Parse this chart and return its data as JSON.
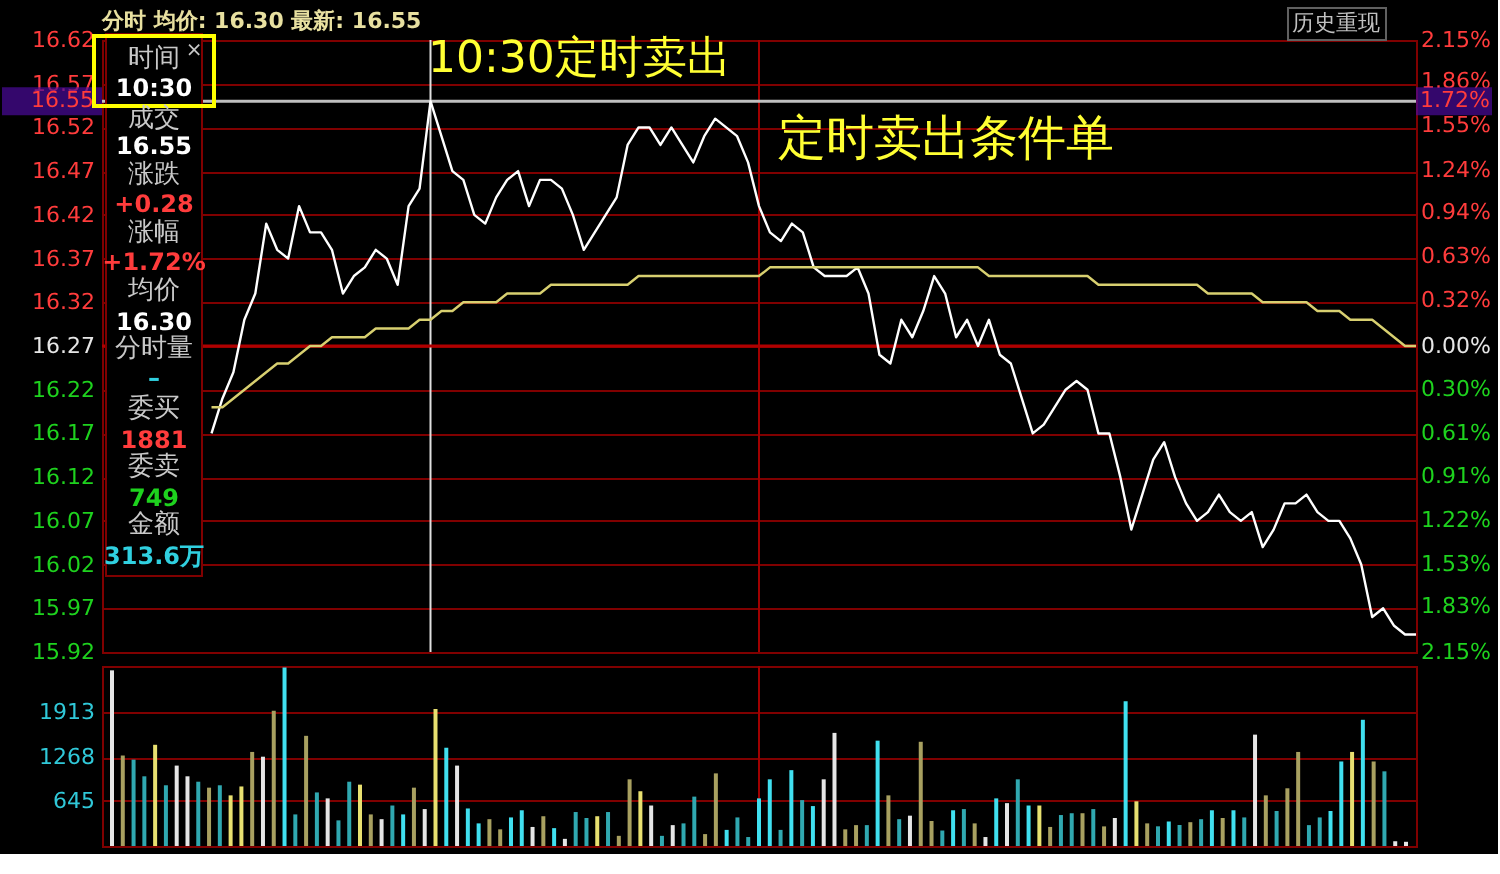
{
  "chart_data": [
    {
      "type": "line",
      "categories": [
        null,
        null,
        null,
        null,
        null,
        null,
        null,
        null,
        null,
        null,
        null,
        null,
        null,
        null,
        null,
        null,
        null,
        null,
        null,
        null,
        null,
        null,
        null,
        null,
        null,
        null,
        null,
        null,
        null,
        null,
        null,
        null,
        null,
        null,
        null,
        null,
        null,
        null,
        null,
        null,
        null,
        null,
        null,
        null,
        null,
        null,
        null,
        null,
        null,
        null,
        null,
        null,
        null,
        null,
        null,
        null,
        null,
        null,
        null,
        null,
        null,
        null,
        null,
        null,
        null,
        null,
        null,
        null,
        null,
        null,
        null,
        null,
        null,
        null,
        null,
        null,
        null,
        null,
        null,
        null,
        null,
        null,
        null,
        null,
        null,
        null,
        null,
        null,
        null,
        null,
        null,
        null,
        null,
        null,
        null,
        null,
        null,
        null,
        null,
        null,
        null,
        null,
        null,
        null,
        null,
        null,
        null,
        null,
        null,
        null,
        null,
        null,
        null,
        null,
        null,
        null,
        null,
        null,
        null,
        null,
        null
      ],
      "series": [
        {
          "color": "#ffffff",
          "values": [
            null,
            null,
            null,
            null,
            null,
            null,
            null,
            null,
            null,
            null,
            16.17,
            16.21,
            16.24,
            16.3,
            16.33,
            16.41,
            16.38,
            16.37,
            16.43,
            16.4,
            16.4,
            16.38,
            16.33,
            16.35,
            16.36,
            16.38,
            16.37,
            16.34,
            16.43,
            16.45,
            16.55,
            16.51,
            16.47,
            16.46,
            16.42,
            16.41,
            16.44,
            16.46,
            16.47,
            16.43,
            16.46,
            16.46,
            16.45,
            16.42,
            16.38,
            16.4,
            16.42,
            16.44,
            16.5,
            16.52,
            16.52,
            16.5,
            16.52,
            16.5,
            16.48,
            16.51,
            16.53,
            16.52,
            16.51,
            16.48,
            16.43,
            16.4,
            16.39,
            16.41,
            16.4,
            16.36,
            16.35,
            16.35,
            16.35,
            16.36,
            16.33,
            16.26,
            16.25,
            16.3,
            16.28,
            16.31,
            16.35,
            16.33,
            16.28,
            16.3,
            16.27,
            16.3,
            16.26,
            16.25,
            16.21,
            16.17,
            16.18,
            16.2,
            16.22,
            16.23,
            16.22,
            16.17,
            16.17,
            16.12,
            16.06,
            16.1,
            16.14,
            16.16,
            16.12,
            16.09,
            16.07,
            16.08,
            16.1,
            16.08,
            16.07,
            16.08,
            16.04,
            16.06,
            16.09,
            16.09,
            16.1,
            16.08,
            16.07,
            16.07,
            16.05,
            16.02,
            15.96,
            15.97,
            15.95,
            15.94,
            15.94
          ]
        },
        {
          "color": "#d8d070",
          "values": [
            null,
            null,
            null,
            null,
            null,
            null,
            null,
            null,
            null,
            null,
            16.2,
            16.2,
            16.21,
            16.22,
            16.23,
            16.24,
            16.25,
            16.25,
            16.26,
            16.27,
            16.27,
            16.28,
            16.28,
            16.28,
            16.28,
            16.29,
            16.29,
            16.29,
            16.29,
            16.3,
            16.3,
            16.31,
            16.31,
            16.32,
            16.32,
            16.32,
            16.32,
            16.33,
            16.33,
            16.33,
            16.33,
            16.34,
            16.34,
            16.34,
            16.34,
            16.34,
            16.34,
            16.34,
            16.34,
            16.35,
            16.35,
            16.35,
            16.35,
            16.35,
            16.35,
            16.35,
            16.35,
            16.35,
            16.35,
            16.35,
            16.35,
            16.36,
            16.36,
            16.36,
            16.36,
            16.36,
            16.36,
            16.36,
            16.36,
            16.36,
            16.36,
            16.36,
            16.36,
            16.36,
            16.36,
            16.36,
            16.36,
            16.36,
            16.36,
            16.36,
            16.36,
            16.35,
            16.35,
            16.35,
            16.35,
            16.35,
            16.35,
            16.35,
            16.35,
            16.35,
            16.35,
            16.34,
            16.34,
            16.34,
            16.34,
            16.34,
            16.34,
            16.34,
            16.34,
            16.34,
            16.34,
            16.33,
            16.33,
            16.33,
            16.33,
            16.33,
            16.32,
            16.32,
            16.32,
            16.32,
            16.32,
            16.31,
            16.31,
            16.31,
            16.3,
            16.3,
            16.3,
            16.29,
            16.28,
            16.27,
            16.27
          ]
        }
      ],
      "ylim": [
        15.92,
        16.62
      ],
      "yticks": [
        16.62,
        16.57,
        16.52,
        16.47,
        16.42,
        16.37,
        16.32,
        16.27,
        16.22,
        16.17,
        16.12,
        16.07,
        16.02,
        15.97,
        15.92
      ],
      "y2lim": [
        -2.15,
        2.15
      ],
      "y2ticks": [
        {
          "value": 2.15,
          "label": "2.15%"
        },
        {
          "value": 1.86,
          "label": "1.86%"
        },
        {
          "value": 1.55,
          "label": "1.55%"
        },
        {
          "value": 1.24,
          "label": "1.24%"
        },
        {
          "value": 0.94,
          "label": "0.94%"
        },
        {
          "value": 0.63,
          "label": "0.63%"
        },
        {
          "value": 0.32,
          "label": "0.32%"
        },
        {
          "value": 0.0,
          "label": "0.00%"
        },
        {
          "value": -0.3,
          "label": "0.30%"
        },
        {
          "value": -0.61,
          "label": "0.61%"
        },
        {
          "value": -0.91,
          "label": "0.91%"
        },
        {
          "value": -1.22,
          "label": "1.22%"
        },
        {
          "value": -1.53,
          "label": "1.53%"
        },
        {
          "value": -1.83,
          "label": "1.83%"
        },
        {
          "value": -2.15,
          "label": "2.15%"
        }
      ],
      "grid": "y",
      "ref_lines": [
        {
          "axis": "y",
          "value": 16.27,
          "color": "#b00000"
        },
        {
          "axis": "y",
          "value": 16.55,
          "label": "16.55",
          "color": "#c0c0c0"
        }
      ],
      "annotations": [
        "分时 均价: 16.30 最新: 16.55",
        "历史重现",
        "10:30定时卖出",
        "定时卖出条件单",
        "时间",
        "×",
        "10:30",
        "成交",
        "16.55",
        "涨跌",
        "+0.28",
        "涨幅",
        "+1.72%",
        "均价",
        "16.30",
        "分时量",
        "–",
        "委买",
        "1881",
        "委卖",
        "749",
        "金额",
        "313.6万",
        {
          "text": "1.72%",
          "y": 16.55
        }
      ]
    },
    {
      "type": "bar",
      "categories": [
        null,
        null,
        null,
        null,
        null,
        null,
        null,
        null,
        null,
        null,
        null,
        null,
        null,
        null,
        null,
        null,
        null,
        null,
        null,
        null,
        null,
        null,
        null,
        null,
        null,
        null,
        null,
        null,
        null,
        null,
        null,
        null,
        null,
        null,
        null,
        null,
        null,
        null,
        null,
        null,
        null,
        null,
        null,
        null,
        null,
        null,
        null,
        null,
        null,
        null,
        null,
        null,
        null,
        null,
        null,
        null,
        null,
        null,
        null,
        null,
        null,
        null,
        null,
        null,
        null,
        null,
        null,
        null,
        null,
        null,
        null,
        null,
        null,
        null,
        null,
        null,
        null,
        null,
        null,
        null,
        null,
        null,
        null,
        null,
        null,
        null,
        null,
        null,
        null,
        null,
        null,
        null,
        null,
        null,
        null,
        null,
        null,
        null,
        null,
        null,
        null,
        null,
        null,
        null,
        null,
        null,
        null,
        null,
        null,
        null,
        null,
        null,
        null,
        null,
        null,
        null,
        null,
        null,
        null,
        null,
        null
      ],
      "values": [
        2508,
        1292,
        1233,
        995,
        1445,
        867,
        1148,
        995,
        918,
        833,
        867,
        723,
        850,
        1343,
        1275,
        1930,
        2550,
        451,
        1573,
        765,
        680,
        366,
        918,
        876,
        451,
        383,
        578,
        451,
        833,
        527,
        1955,
        1403,
        1148,
        536,
        323,
        383,
        238,
        408,
        510,
        272,
        425,
        255,
        102,
        485,
        400,
        425,
        485,
        145,
        952,
        782,
        578,
        145,
        298,
        323,
        705,
        170,
        1037,
        230,
        408,
        128,
        680,
        952,
        230,
        1083,
        655,
        570,
        952,
        1615,
        238,
        298,
        298,
        1504,
        723,
        383,
        433,
        1488,
        357,
        221,
        510,
        527,
        323,
        128,
        680,
        612,
        952,
        578,
        578,
        272,
        442,
        468,
        468,
        527,
        280,
        400,
        2066,
        638,
        323,
        281,
        350,
        300,
        340,
        383,
        510,
        400,
        510,
        408,
        1590,
        723,
        500,
        824,
        1343,
        298,
        408,
        500,
        1207,
        1343,
        1802,
        1207,
        1066,
        68,
        60
      ],
      "colors": [
        "#e6e6e6",
        "#a8a060",
        "#30a8b0",
        "#30a8b0",
        "#e8e070",
        "#30a8b0",
        "#e6e6e6",
        "#e6e6e6",
        "#30a8b0",
        "#a8a060",
        "#30a8b0",
        "#e8e070",
        "#e8e070",
        "#a8a060",
        "#e6e6e6",
        "#a8a060",
        "#40e0f0",
        "#30a8b0",
        "#a8a060",
        "#30a8b0",
        "#e6e6e6",
        "#30a8b0",
        "#30a8b0",
        "#e8e070",
        "#a8a060",
        "#e6e6e6",
        "#30a8b0",
        "#40e0f0",
        "#a8a060",
        "#e6e6e6",
        "#e8e070",
        "#40e0f0",
        "#e6e6e6",
        "#40e0f0",
        "#40e0f0",
        "#a8a060",
        "#a8a060",
        "#40e0f0",
        "#40e0f0",
        "#e6e6e6",
        "#a8a060",
        "#40e0f0",
        "#e6e6e6",
        "#30a8b0",
        "#30a8b0",
        "#e8e070",
        "#30a8b0",
        "#a8a060",
        "#a8a060",
        "#e8e070",
        "#e6e6e6",
        "#30a8b0",
        "#e6e6e6",
        "#30a8b0",
        "#30a8b0",
        "#a8a060",
        "#a8a060",
        "#40e0f0",
        "#30a8b0",
        "#30a8b0",
        "#40e0f0",
        "#40e0f0",
        "#30a8b0",
        "#40e0f0",
        "#30a8b0",
        "#40e0f0",
        "#e6e6e6",
        "#e6e6e6",
        "#a8a060",
        "#a8a060",
        "#30a8b0",
        "#40e0f0",
        "#a8a060",
        "#30a8b0",
        "#e6e6e6",
        "#a8a060",
        "#a8a060",
        "#30a8b0",
        "#40e0f0",
        "#30a8b0",
        "#a8a060",
        "#e6e6e6",
        "#40e0f0",
        "#e6e6e6",
        "#30a8b0",
        "#40e0f0",
        "#e8e070",
        "#a8a060",
        "#30a8b0",
        "#30a8b0",
        "#a8a060",
        "#30a8b0",
        "#a8a060",
        "#e6e6e6",
        "#40e0f0",
        "#e8e070",
        "#a8a060",
        "#30a8b0",
        "#40e0f0",
        "#30a8b0",
        "#a8a060",
        "#30a8b0",
        "#40e0f0",
        "#a8a060",
        "#40e0f0",
        "#30a8b0",
        "#e6e6e6",
        "#a8a060",
        "#30a8b0",
        "#a8a060",
        "#a8a060",
        "#30a8b0",
        "#30a8b0",
        "#40e0f0",
        "#40e0f0",
        "#e8e070",
        "#40e0f0",
        "#a8a060",
        "#30a8b0",
        "#e6e6e6",
        "#e6e6e6"
      ],
      "ylim": [
        0,
        2570
      ],
      "yticks": [
        645,
        1268,
        1913
      ],
      "grid": "y"
    }
  ]
}
